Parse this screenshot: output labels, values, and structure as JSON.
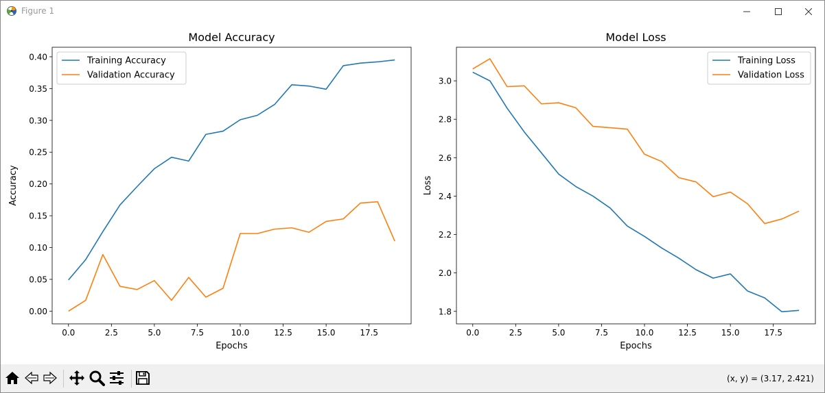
{
  "window": {
    "title": "Figure 1"
  },
  "toolbar": {
    "buttons": [
      {
        "name": "home-icon"
      },
      {
        "name": "back-icon"
      },
      {
        "name": "forward-icon"
      },
      {
        "name": "pan-icon"
      },
      {
        "name": "zoom-icon"
      },
      {
        "name": "configure-subplots-icon"
      },
      {
        "name": "save-icon"
      }
    ],
    "coords": "(x, y) = (3.17, 2.421)"
  },
  "colors": {
    "training": "#1f77b4",
    "validation": "#ff7f0e"
  },
  "chart_data": [
    {
      "type": "line",
      "title": "Model Accuracy",
      "xlabel": "Epochs",
      "ylabel": "Accuracy",
      "xlim": [
        -0.95,
        19.95
      ],
      "ylim": [
        -0.02,
        0.415
      ],
      "xticks": [
        0.0,
        2.5,
        5.0,
        7.5,
        10.0,
        12.5,
        15.0,
        17.5
      ],
      "xtick_labels": [
        "0.0",
        "2.5",
        "5.0",
        "7.5",
        "10.0",
        "12.5",
        "15.0",
        "17.5"
      ],
      "yticks": [
        0.0,
        0.05,
        0.1,
        0.15,
        0.2,
        0.25,
        0.3,
        0.35,
        0.4
      ],
      "ytick_labels": [
        "0.00",
        "0.05",
        "0.10",
        "0.15",
        "0.20",
        "0.25",
        "0.30",
        "0.35",
        "0.40"
      ],
      "legend_position": "upper left",
      "x": [
        0,
        1,
        2,
        3,
        4,
        5,
        6,
        7,
        8,
        9,
        10,
        11,
        12,
        13,
        14,
        15,
        16,
        17,
        18,
        19
      ],
      "series": [
        {
          "name": "Training Accuracy",
          "color": "#1f77b4",
          "values": [
            0.049,
            0.081,
            0.125,
            0.167,
            0.196,
            0.224,
            0.242,
            0.236,
            0.278,
            0.283,
            0.301,
            0.308,
            0.325,
            0.356,
            0.354,
            0.349,
            0.386,
            0.39,
            0.392,
            0.395
          ]
        },
        {
          "name": "Validation Accuracy",
          "color": "#ff7f0e",
          "values": [
            0.0,
            0.017,
            0.089,
            0.039,
            0.034,
            0.048,
            0.017,
            0.053,
            0.022,
            0.036,
            0.122,
            0.122,
            0.129,
            0.131,
            0.124,
            0.141,
            0.145,
            0.17,
            0.172,
            0.11
          ]
        }
      ]
    },
    {
      "type": "line",
      "title": "Model Loss",
      "xlabel": "Epochs",
      "ylabel": "Loss",
      "xlim": [
        -0.95,
        19.95
      ],
      "ylim": [
        1.735,
        3.175
      ],
      "xticks": [
        0.0,
        2.5,
        5.0,
        7.5,
        10.0,
        12.5,
        15.0,
        17.5
      ],
      "xtick_labels": [
        "0.0",
        "2.5",
        "5.0",
        "7.5",
        "10.0",
        "12.5",
        "15.0",
        "17.5"
      ],
      "yticks": [
        1.8,
        2.0,
        2.2,
        2.4,
        2.6,
        2.8,
        3.0
      ],
      "ytick_labels": [
        "1.8",
        "2.0",
        "2.2",
        "2.4",
        "2.6",
        "2.8",
        "3.0"
      ],
      "legend_position": "upper right",
      "x": [
        0,
        1,
        2,
        3,
        4,
        5,
        6,
        7,
        8,
        9,
        10,
        11,
        12,
        13,
        14,
        15,
        16,
        17,
        18,
        19
      ],
      "series": [
        {
          "name": "Training Loss",
          "color": "#1f77b4",
          "values": [
            3.045,
            3.0,
            2.858,
            2.734,
            2.625,
            2.515,
            2.45,
            2.4,
            2.338,
            2.244,
            2.19,
            2.13,
            2.077,
            2.017,
            1.973,
            1.995,
            1.906,
            1.87,
            1.798,
            1.805
          ]
        },
        {
          "name": "Validation Loss",
          "color": "#ff7f0e",
          "values": [
            3.062,
            3.115,
            2.97,
            2.974,
            2.88,
            2.886,
            2.86,
            2.763,
            2.756,
            2.749,
            2.618,
            2.58,
            2.496,
            2.474,
            2.397,
            2.421,
            2.36,
            2.257,
            2.281,
            2.322
          ]
        }
      ]
    }
  ]
}
